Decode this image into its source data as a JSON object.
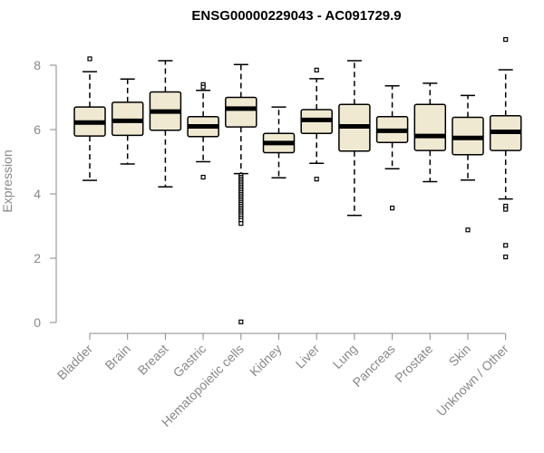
{
  "chart_data": {
    "type": "boxplot",
    "title": "ENSG00000229043 - AC091729.9",
    "xlabel": "",
    "ylabel": "Expression",
    "ylim": [
      0,
      8
    ],
    "yticks": [
      0,
      2,
      4,
      6,
      8
    ],
    "grid": false,
    "legend": "none",
    "box_fill": "#f0e9d2",
    "box_stroke": "#000000",
    "categories": [
      "Bladder",
      "Brain",
      "Breast",
      "Gastric",
      "Hematopoietic cells",
      "Kidney",
      "Liver",
      "Lung",
      "Pancreas",
      "Prostate",
      "Skin",
      "Unknown / Other"
    ],
    "boxes": [
      {
        "whisker_low": 4.42,
        "q1": 5.8,
        "median": 6.22,
        "q3": 6.7,
        "whisker_high": 7.8,
        "outliers": [
          8.2
        ]
      },
      {
        "whisker_low": 4.93,
        "q1": 5.82,
        "median": 6.27,
        "q3": 6.85,
        "whisker_high": 7.57,
        "outliers": []
      },
      {
        "whisker_low": 4.22,
        "q1": 5.98,
        "median": 6.56,
        "q3": 7.17,
        "whisker_high": 8.14,
        "outliers": []
      },
      {
        "whisker_low": 5.0,
        "q1": 5.78,
        "median": 6.1,
        "q3": 6.4,
        "whisker_high": 7.22,
        "outliers": [
          7.4,
          7.32,
          4.52
        ]
      },
      {
        "whisker_low": 4.63,
        "q1": 6.08,
        "median": 6.65,
        "q3": 7.0,
        "whisker_high": 8.02,
        "outliers": [
          4.58,
          4.52,
          4.46,
          4.4,
          4.34,
          4.28,
          4.22,
          4.16,
          4.1,
          4.04,
          3.98,
          3.92,
          3.86,
          3.8,
          3.74,
          3.68,
          3.62,
          3.56,
          3.5,
          3.44,
          3.38,
          3.32,
          3.25,
          3.18,
          3.08,
          0.02
        ]
      },
      {
        "whisker_low": 4.5,
        "q1": 5.28,
        "median": 5.58,
        "q3": 5.88,
        "whisker_high": 6.7,
        "outliers": []
      },
      {
        "whisker_low": 4.95,
        "q1": 5.88,
        "median": 6.3,
        "q3": 6.62,
        "whisker_high": 7.58,
        "outliers": [
          7.85,
          4.46
        ]
      },
      {
        "whisker_low": 3.33,
        "q1": 5.33,
        "median": 6.1,
        "q3": 6.78,
        "whisker_high": 8.14,
        "outliers": []
      },
      {
        "whisker_low": 4.78,
        "q1": 5.6,
        "median": 5.96,
        "q3": 6.4,
        "whisker_high": 7.36,
        "outliers": [
          3.56
        ]
      },
      {
        "whisker_low": 4.38,
        "q1": 5.35,
        "median": 5.8,
        "q3": 6.78,
        "whisker_high": 7.44,
        "outliers": []
      },
      {
        "whisker_low": 4.43,
        "q1": 5.22,
        "median": 5.74,
        "q3": 6.38,
        "whisker_high": 7.06,
        "outliers": [
          2.88
        ]
      },
      {
        "whisker_low": 3.84,
        "q1": 5.35,
        "median": 5.93,
        "q3": 6.43,
        "whisker_high": 7.86,
        "outliers": [
          8.8,
          3.62,
          3.52,
          2.4,
          2.04
        ]
      }
    ]
  }
}
